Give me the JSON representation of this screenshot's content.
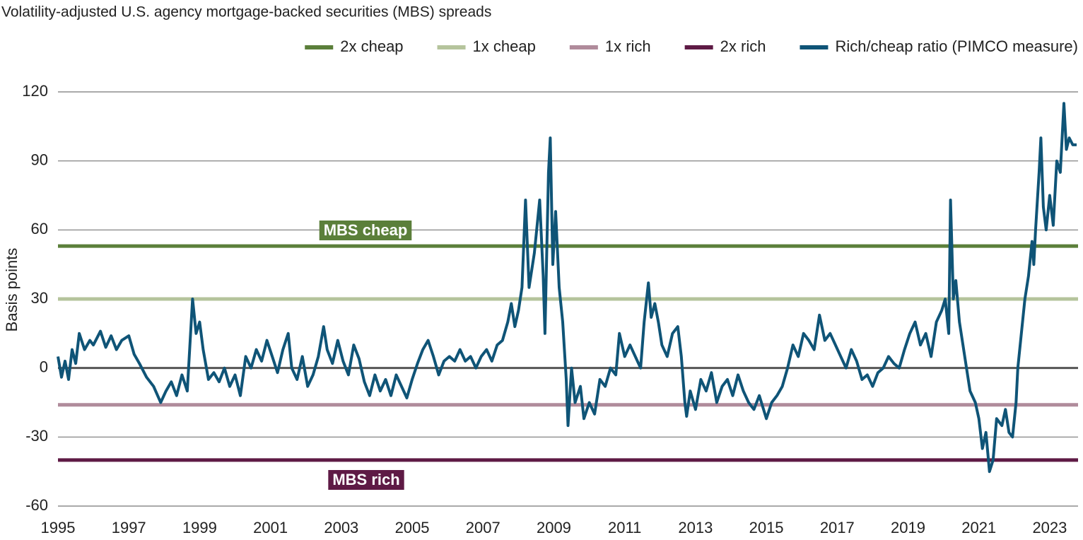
{
  "chart_data": {
    "type": "line",
    "title": "Volatility-adjusted U.S. agency mortgage-backed securities (MBS) spreads",
    "y_label": "Basis points",
    "xlim": [
      1995,
      2023.8
    ],
    "xticks": [
      1995,
      1997,
      1999,
      2001,
      2003,
      2005,
      2007,
      2009,
      2011,
      2013,
      2015,
      2017,
      2019,
      2021,
      2023
    ],
    "ylim": [
      -60,
      120
    ],
    "yticks": [
      -60,
      -30,
      0,
      30,
      60,
      90,
      120
    ],
    "grid": true,
    "legend": "top-right",
    "annotations": [
      {
        "text": "MBS cheap",
        "color": "#5b7f3a"
      },
      {
        "text": "MBS rich",
        "color": "#5e1a45"
      }
    ],
    "x": [
      1995.0,
      1995.1,
      1995.2,
      1995.3,
      1995.4,
      1995.5,
      1995.6,
      1995.75,
      1995.9,
      1996.0,
      1996.2,
      1996.35,
      1996.5,
      1996.65,
      1996.8,
      1997.0,
      1997.15,
      1997.3,
      1997.5,
      1997.7,
      1997.9,
      1998.05,
      1998.2,
      1998.35,
      1998.5,
      1998.65,
      1998.8,
      1998.9,
      1999.0,
      1999.1,
      1999.25,
      1999.4,
      1999.55,
      1999.7,
      1999.85,
      2000.0,
      2000.15,
      2000.3,
      2000.45,
      2000.6,
      2000.75,
      2000.9,
      2001.05,
      2001.2,
      2001.35,
      2001.5,
      2001.6,
      2001.75,
      2001.9,
      2002.05,
      2002.2,
      2002.35,
      2002.5,
      2002.6,
      2002.75,
      2002.9,
      2003.05,
      2003.2,
      2003.35,
      2003.5,
      2003.65,
      2003.8,
      2003.95,
      2004.1,
      2004.25,
      2004.4,
      2004.55,
      2004.7,
      2004.85,
      2005.0,
      2005.15,
      2005.3,
      2005.45,
      2005.6,
      2005.75,
      2005.9,
      2006.05,
      2006.2,
      2006.35,
      2006.5,
      2006.65,
      2006.8,
      2006.95,
      2007.1,
      2007.25,
      2007.4,
      2007.55,
      2007.7,
      2007.8,
      2007.9,
      2008.0,
      2008.1,
      2008.2,
      2008.3,
      2008.45,
      2008.6,
      2008.7,
      2008.75,
      2008.85,
      2008.9,
      2008.97,
      2009.05,
      2009.15,
      2009.25,
      2009.35,
      2009.4,
      2009.5,
      2009.6,
      2009.75,
      2009.85,
      2010.0,
      2010.15,
      2010.3,
      2010.45,
      2010.6,
      2010.75,
      2010.85,
      2011.0,
      2011.15,
      2011.3,
      2011.45,
      2011.55,
      2011.67,
      2011.75,
      2011.85,
      2011.95,
      2012.05,
      2012.2,
      2012.35,
      2012.5,
      2012.6,
      2012.7,
      2012.75,
      2012.85,
      2013.0,
      2013.15,
      2013.3,
      2013.45,
      2013.6,
      2013.75,
      2013.9,
      2014.05,
      2014.2,
      2014.35,
      2014.5,
      2014.65,
      2014.8,
      2015.0,
      2015.15,
      2015.3,
      2015.45,
      2015.6,
      2015.75,
      2015.9,
      2016.05,
      2016.2,
      2016.35,
      2016.5,
      2016.65,
      2016.8,
      2016.95,
      2017.1,
      2017.25,
      2017.4,
      2017.55,
      2017.7,
      2017.85,
      2018.0,
      2018.15,
      2018.3,
      2018.45,
      2018.6,
      2018.75,
      2018.9,
      2019.05,
      2019.2,
      2019.35,
      2019.5,
      2019.65,
      2019.8,
      2019.95,
      2020.05,
      2020.15,
      2020.2,
      2020.28,
      2020.35,
      2020.45,
      2020.55,
      2020.65,
      2020.75,
      2020.9,
      2021.0,
      2021.1,
      2021.2,
      2021.3,
      2021.4,
      2021.5,
      2021.65,
      2021.75,
      2021.85,
      2021.95,
      2022.05,
      2022.1,
      2022.2,
      2022.3,
      2022.4,
      2022.5,
      2022.55,
      2022.6,
      2022.7,
      2022.75,
      2022.82,
      2022.9,
      2023.0,
      2023.1,
      2023.2,
      2023.3,
      2023.4,
      2023.47,
      2023.55,
      2023.65,
      2023.76
    ],
    "series": [
      {
        "name": "2x cheap",
        "color": "#5b7f3a",
        "value": 53
      },
      {
        "name": "1x cheap",
        "color": "#b5c49c",
        "value": 30
      },
      {
        "name": "1x rich",
        "color": "#b08b9b",
        "value": -16
      },
      {
        "name": "2x rich",
        "color": "#5e1a45",
        "value": -40
      },
      {
        "name": "Rich/cheap ratio (PIMCO measure)",
        "color": "#0f5477",
        "values": [
          5,
          -4,
          3,
          -5,
          8,
          2,
          15,
          8,
          12,
          10,
          16,
          9,
          14,
          8,
          12,
          14,
          6,
          2,
          -4,
          -8,
          -15,
          -10,
          -6,
          -12,
          -3,
          -10,
          30,
          15,
          20,
          8,
          -5,
          -2,
          -6,
          0,
          -8,
          -3,
          -12,
          5,
          0,
          8,
          3,
          12,
          5,
          -2,
          8,
          15,
          0,
          -5,
          5,
          -8,
          -3,
          5,
          18,
          8,
          2,
          12,
          3,
          -3,
          10,
          4,
          -6,
          -12,
          -3,
          -10,
          -5,
          -12,
          -3,
          -8,
          -13,
          -5,
          2,
          8,
          12,
          5,
          -3,
          3,
          5,
          3,
          8,
          3,
          5,
          0,
          5,
          8,
          3,
          10,
          12,
          20,
          28,
          18,
          25,
          35,
          73,
          35,
          50,
          73,
          40,
          15,
          85,
          100,
          45,
          68,
          35,
          20,
          -5,
          -25,
          0,
          -15,
          -8,
          -22,
          -15,
          -20,
          -5,
          -8,
          0,
          -3,
          15,
          5,
          10,
          5,
          0,
          20,
          37,
          22,
          28,
          20,
          10,
          5,
          15,
          18,
          5,
          -15,
          -21,
          -10,
          -18,
          -5,
          -10,
          -2,
          -15,
          -8,
          -5,
          -12,
          -3,
          -10,
          -15,
          -18,
          -12,
          -22,
          -15,
          -12,
          -8,
          0,
          10,
          5,
          15,
          12,
          8,
          23,
          12,
          15,
          10,
          5,
          0,
          8,
          3,
          -5,
          -3,
          -8,
          -2,
          0,
          5,
          2,
          0,
          8,
          15,
          20,
          10,
          15,
          5,
          20,
          25,
          30,
          15,
          73,
          30,
          38,
          20,
          10,
          0,
          -10,
          -15,
          -22,
          -35,
          -28,
          -45,
          -40,
          -22,
          -25,
          -18,
          -28,
          -30,
          -15,
          0,
          15,
          30,
          40,
          55,
          45,
          60,
          85,
          100,
          70,
          60,
          75,
          62,
          90,
          85,
          115,
          95,
          100,
          97,
          97
        ]
      }
    ]
  }
}
